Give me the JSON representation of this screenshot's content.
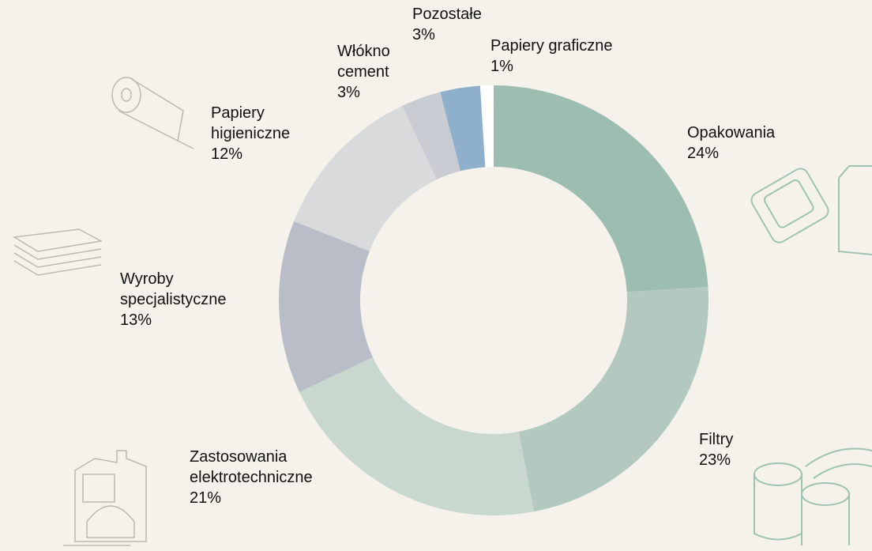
{
  "chart_data": {
    "type": "donut",
    "categories": [
      "Opakowania",
      "Filtry",
      "Zastosowania elektrotechniczne",
      "Wyroby specjalistyczne",
      "Papiery higieniczne",
      "Włókno cement",
      "Pozostałe",
      "Papiery graficzne"
    ],
    "values": [
      24,
      23,
      21,
      13,
      12,
      3,
      3,
      1
    ],
    "value_labels": [
      "24%",
      "23%",
      "21%",
      "13%",
      "12%",
      "3%",
      "3%",
      "1%"
    ],
    "colors": [
      "#9dbdb0",
      "#b3c9bf",
      "#c9d8ce",
      "#b8bdc8",
      "#d8dadc",
      "#c9ccd3",
      "#8fb0cc",
      "#ffffff"
    ]
  }
}
